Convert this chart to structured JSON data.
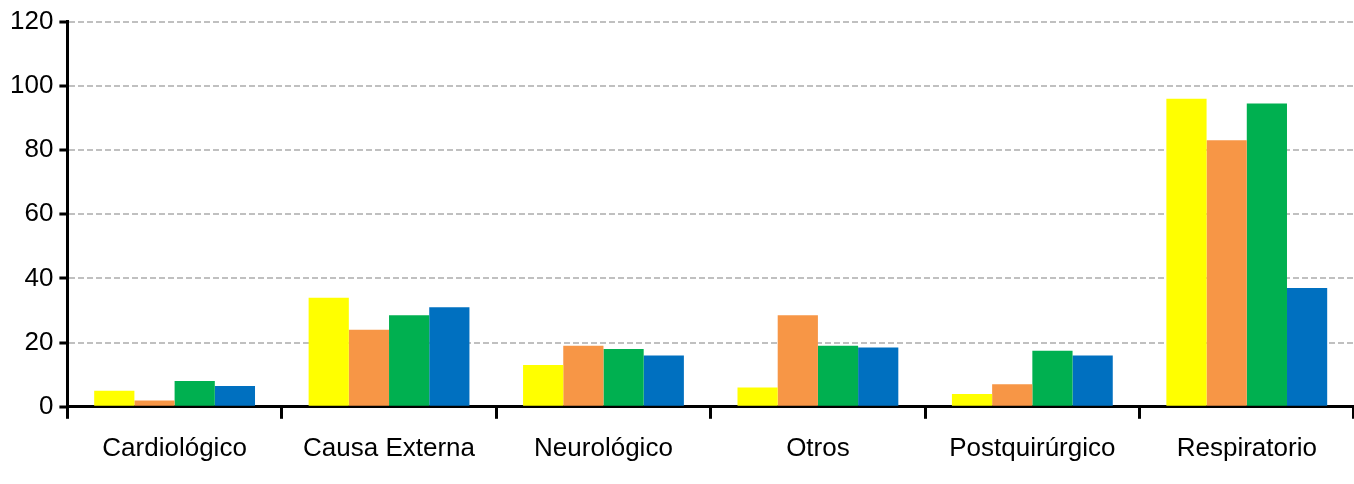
{
  "chart_data": {
    "type": "bar",
    "categories": [
      "Cardiológico",
      "Causa Externa",
      "Neurológico",
      "Otros",
      "Postquirúrgico",
      "Respiratorio"
    ],
    "series": [
      {
        "color": "#ffff00",
        "values": [
          5,
          34,
          13,
          6,
          4,
          96
        ]
      },
      {
        "color": "#f79646",
        "values": [
          2,
          24,
          19,
          28.5,
          7,
          83
        ]
      },
      {
        "color": "#00b050",
        "values": [
          8,
          28.5,
          18,
          19,
          17.5,
          94.5
        ]
      },
      {
        "color": "#0070c0",
        "values": [
          6.5,
          31,
          16,
          18.5,
          16,
          37
        ]
      }
    ],
    "ylim": [
      0,
      120
    ],
    "yticks": [
      0,
      20,
      40,
      60,
      80,
      100,
      120
    ],
    "grid": "y",
    "legend": false
  }
}
